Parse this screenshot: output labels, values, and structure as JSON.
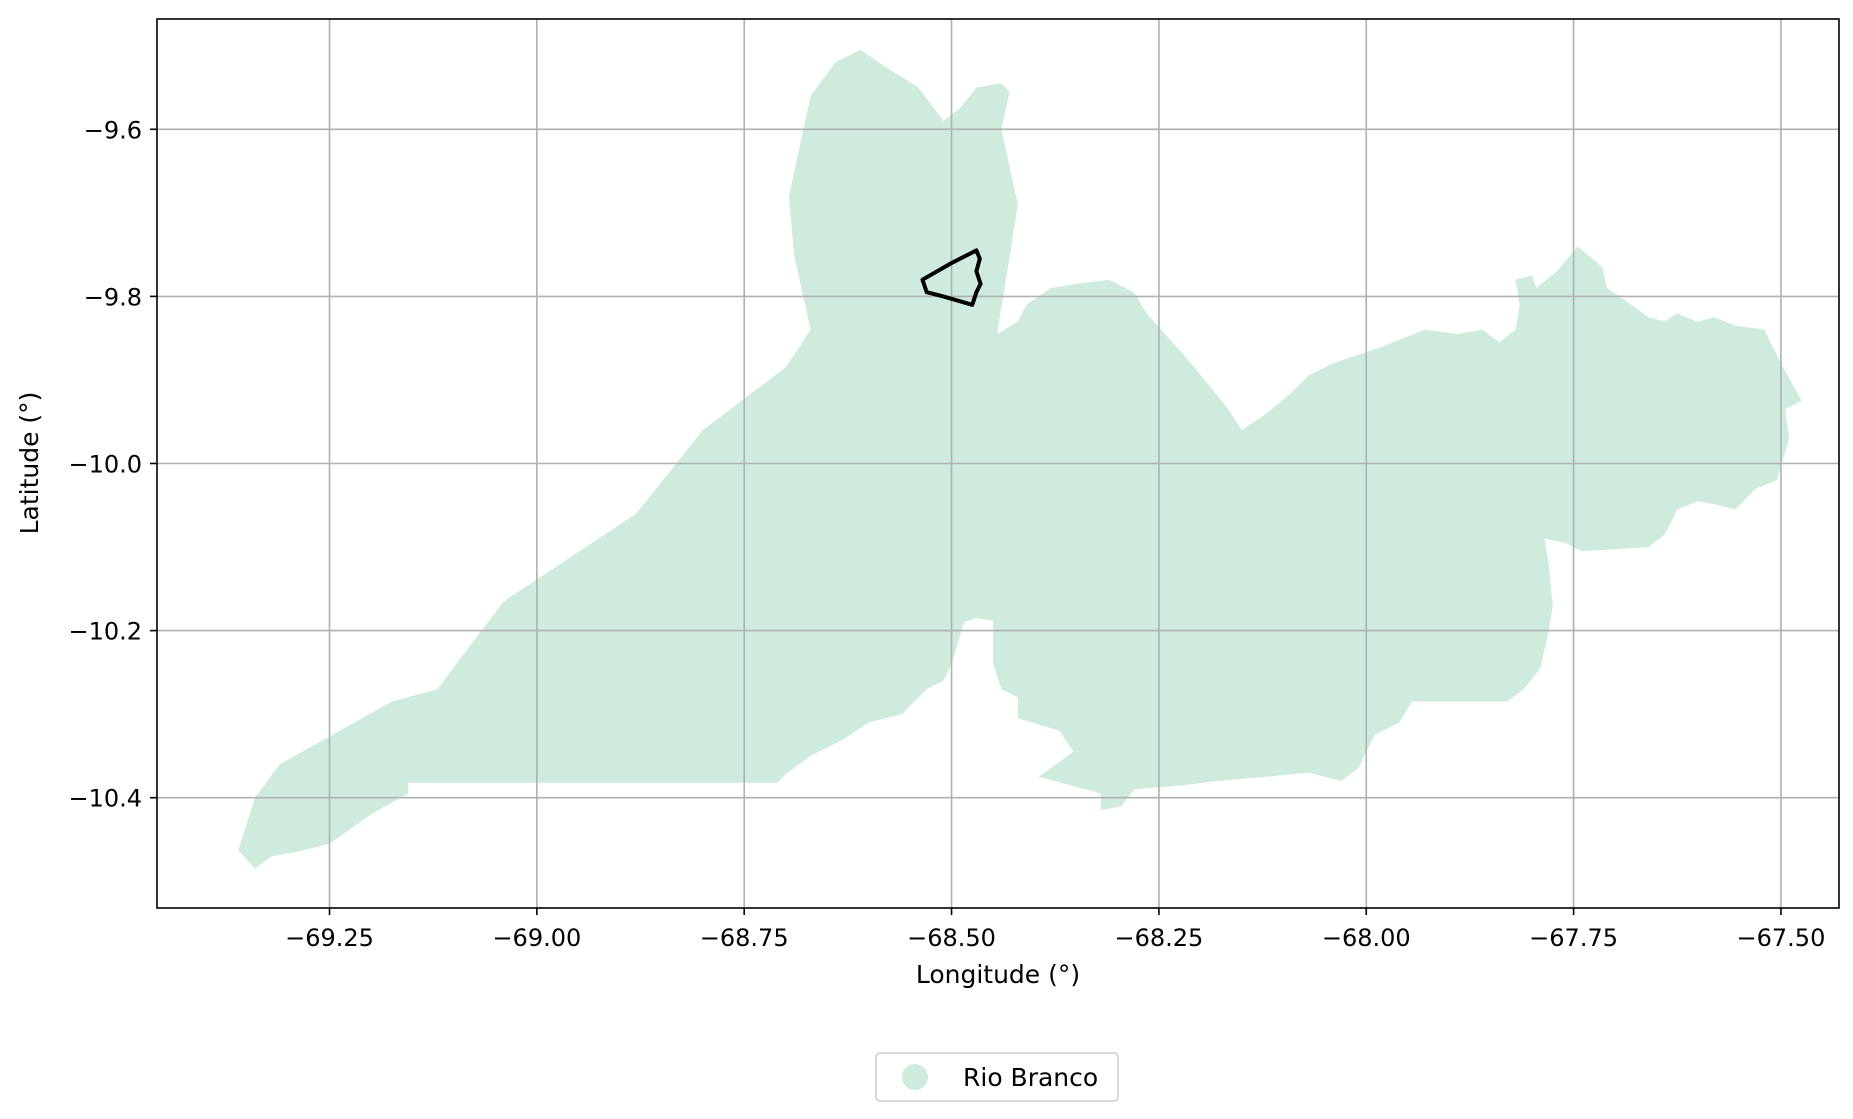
{
  "chart_data": {
    "type": "map",
    "xlabel": "Longitude (°)",
    "ylabel": "Latitude (°)",
    "xlim": [
      -69.458,
      -67.43
    ],
    "ylim": [
      -10.532,
      -9.468
    ],
    "grid": true,
    "x_ticks": [
      {
        "value": -69.25,
        "label": "−69.25"
      },
      {
        "value": -69.0,
        "label": "−69.00"
      },
      {
        "value": -68.75,
        "label": "−68.75"
      },
      {
        "value": -68.5,
        "label": "−68.50"
      },
      {
        "value": -68.25,
        "label": "−68.25"
      },
      {
        "value": -68.0,
        "label": "−68.00"
      },
      {
        "value": -67.75,
        "label": "−67.75"
      },
      {
        "value": -67.5,
        "label": "−67.50"
      }
    ],
    "y_ticks": [
      {
        "value": -9.6,
        "label": "−9.6"
      },
      {
        "value": -9.8,
        "label": "−9.8"
      },
      {
        "value": -10.0,
        "label": "−10.0"
      },
      {
        "value": -10.2,
        "label": "−10.2"
      },
      {
        "value": -10.4,
        "label": "−10.4"
      }
    ],
    "region_color": "#cfebde",
    "outline_color": "#000000",
    "legend": {
      "location": "below-center",
      "entries": [
        {
          "label": "Rio Branco",
          "color": "#cfebde"
        }
      ]
    },
    "region_polygon": [
      [
        -68.62,
        -9.51
      ],
      [
        -68.64,
        -9.52
      ],
      [
        -68.67,
        -9.56
      ],
      [
        -68.696,
        -9.68
      ],
      [
        -68.69,
        -9.75
      ],
      [
        -68.67,
        -9.84
      ],
      [
        -68.7,
        -9.885
      ],
      [
        -68.8,
        -9.96
      ],
      [
        -68.88,
        -10.06
      ],
      [
        -69.04,
        -10.165
      ],
      [
        -69.12,
        -10.27
      ],
      [
        -69.175,
        -10.285
      ],
      [
        -69.31,
        -10.36
      ],
      [
        -69.34,
        -10.4
      ],
      [
        -69.36,
        -10.463
      ],
      [
        -69.34,
        -10.485
      ],
      [
        -69.32,
        -10.47
      ],
      [
        -69.29,
        -10.465
      ],
      [
        -69.25,
        -10.455
      ],
      [
        -69.2,
        -10.42
      ],
      [
        -69.155,
        -10.395
      ],
      [
        -69.155,
        -10.382
      ],
      [
        -68.71,
        -10.382
      ],
      [
        -68.7,
        -10.372
      ],
      [
        -68.67,
        -10.35
      ],
      [
        -68.63,
        -10.33
      ],
      [
        -68.6,
        -10.31
      ],
      [
        -68.56,
        -10.3
      ],
      [
        -68.53,
        -10.27
      ],
      [
        -68.51,
        -10.26
      ],
      [
        -68.5,
        -10.24
      ],
      [
        -68.485,
        -10.19
      ],
      [
        -68.47,
        -10.185
      ],
      [
        -68.45,
        -10.188
      ],
      [
        -68.45,
        -10.24
      ],
      [
        -68.44,
        -10.27
      ],
      [
        -68.42,
        -10.28
      ],
      [
        -68.42,
        -10.305
      ],
      [
        -68.37,
        -10.32
      ],
      [
        -68.353,
        -10.345
      ],
      [
        -68.395,
        -10.375
      ],
      [
        -68.32,
        -10.395
      ],
      [
        -68.32,
        -10.415
      ],
      [
        -68.295,
        -10.41
      ],
      [
        -68.28,
        -10.39
      ],
      [
        -68.22,
        -10.385
      ],
      [
        -68.18,
        -10.38
      ],
      [
        -68.12,
        -10.375
      ],
      [
        -68.07,
        -10.37
      ],
      [
        -68.03,
        -10.38
      ],
      [
        -68.01,
        -10.365
      ],
      [
        -67.99,
        -10.325
      ],
      [
        -67.96,
        -10.31
      ],
      [
        -67.945,
        -10.285
      ],
      [
        -67.83,
        -10.285
      ],
      [
        -67.81,
        -10.27
      ],
      [
        -67.79,
        -10.245
      ],
      [
        -67.78,
        -10.2
      ],
      [
        -67.775,
        -10.17
      ],
      [
        -67.78,
        -10.12
      ],
      [
        -67.785,
        -10.09
      ],
      [
        -67.76,
        -10.095
      ],
      [
        -67.74,
        -10.105
      ],
      [
        -67.66,
        -10.1
      ],
      [
        -67.64,
        -10.085
      ],
      [
        -67.625,
        -10.055
      ],
      [
        -67.6,
        -10.045
      ],
      [
        -67.575,
        -10.05
      ],
      [
        -67.555,
        -10.055
      ],
      [
        -67.53,
        -10.03
      ],
      [
        -67.505,
        -10.02
      ],
      [
        -67.49,
        -9.97
      ],
      [
        -67.495,
        -9.935
      ],
      [
        -67.475,
        -9.925
      ],
      [
        -67.5,
        -9.88
      ],
      [
        -67.52,
        -9.84
      ],
      [
        -67.555,
        -9.835
      ],
      [
        -67.58,
        -9.825
      ],
      [
        -67.6,
        -9.83
      ],
      [
        -67.615,
        -9.825
      ],
      [
        -67.625,
        -9.82
      ],
      [
        -67.64,
        -9.83
      ],
      [
        -67.66,
        -9.825
      ],
      [
        -67.68,
        -9.81
      ],
      [
        -67.71,
        -9.79
      ],
      [
        -67.715,
        -9.765
      ],
      [
        -67.745,
        -9.74
      ],
      [
        -67.77,
        -9.77
      ],
      [
        -67.795,
        -9.79
      ],
      [
        -67.8,
        -9.775
      ],
      [
        -67.82,
        -9.78
      ],
      [
        -67.815,
        -9.81
      ],
      [
        -67.82,
        -9.84
      ],
      [
        -67.84,
        -9.855
      ],
      [
        -67.86,
        -9.84
      ],
      [
        -67.89,
        -9.845
      ],
      [
        -67.93,
        -9.84
      ],
      [
        -67.98,
        -9.86
      ],
      [
        -68.01,
        -9.87
      ],
      [
        -68.04,
        -9.88
      ],
      [
        -68.07,
        -9.895
      ],
      [
        -68.09,
        -9.915
      ],
      [
        -68.12,
        -9.94
      ],
      [
        -68.15,
        -9.96
      ],
      [
        -68.17,
        -9.93
      ],
      [
        -68.22,
        -9.87
      ],
      [
        -68.265,
        -9.82
      ],
      [
        -68.28,
        -9.795
      ],
      [
        -68.31,
        -9.78
      ],
      [
        -68.35,
        -9.785
      ],
      [
        -68.38,
        -9.79
      ],
      [
        -68.41,
        -9.81
      ],
      [
        -68.42,
        -9.83
      ],
      [
        -68.445,
        -9.845
      ],
      [
        -68.42,
        -9.69
      ],
      [
        -68.44,
        -9.6
      ],
      [
        -68.43,
        -9.555
      ],
      [
        -68.44,
        -9.545
      ],
      [
        -68.47,
        -9.55
      ],
      [
        -68.49,
        -9.575
      ],
      [
        -68.51,
        -9.59
      ],
      [
        -68.54,
        -9.55
      ],
      [
        -68.58,
        -9.525
      ],
      [
        -68.61,
        -9.505
      ]
    ],
    "city_outline": [
      [
        -68.535,
        -9.78
      ],
      [
        -68.5,
        -9.76
      ],
      [
        -68.47,
        -9.745
      ],
      [
        -68.466,
        -9.755
      ],
      [
        -68.47,
        -9.77
      ],
      [
        -68.465,
        -9.785
      ],
      [
        -68.47,
        -9.795
      ],
      [
        -68.475,
        -9.81
      ],
      [
        -68.51,
        -9.8
      ],
      [
        -68.53,
        -9.795
      ]
    ]
  }
}
